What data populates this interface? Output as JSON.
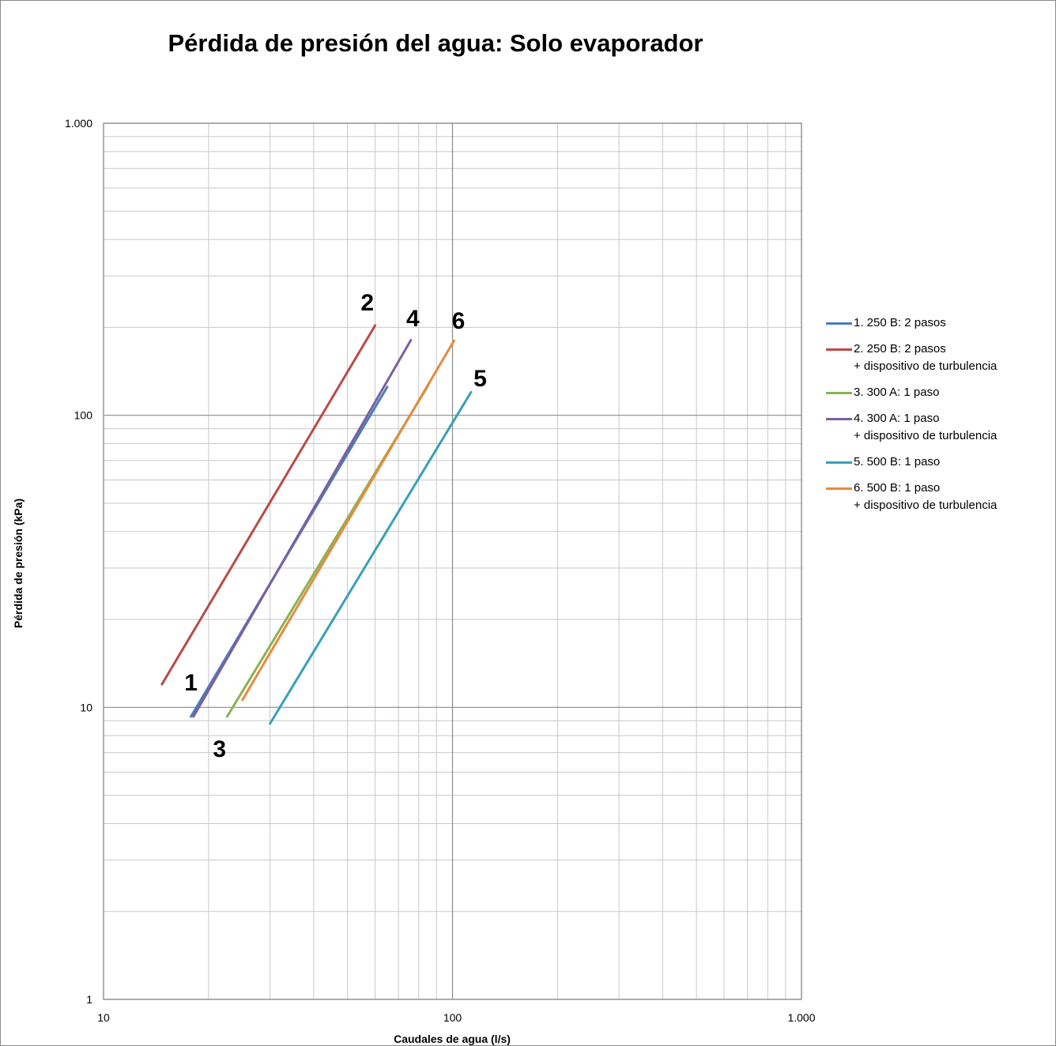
{
  "chart_data": {
    "type": "line",
    "title": "Pérdida de presión del agua: Solo evaporador",
    "xlabel": "Caudales de agua (l/s)",
    "ylabel": "Pérdida de presión (kPa)",
    "x_scale": "log",
    "y_scale": "log",
    "xlim": [
      10,
      1000
    ],
    "ylim": [
      1,
      1000
    ],
    "x_ticks": [
      10,
      100,
      1000
    ],
    "x_tick_labels": [
      "10",
      "100",
      "1.000"
    ],
    "y_ticks": [
      1,
      10,
      100,
      1000
    ],
    "y_tick_labels": [
      "1",
      "10",
      "100",
      "1.000"
    ],
    "grid": true,
    "legend_position": "right",
    "series": [
      {
        "name": "1. 250 B: 2 pasos",
        "legend": [
          "1. 250 B: 2 pasos"
        ],
        "label": "1",
        "color": "#4a7eba",
        "x": [
          17.8,
          65
        ],
        "y": [
          9.3,
          125
        ]
      },
      {
        "name": "2. 250 B: 2 pasos + dispositivo de turbulencia",
        "legend": [
          "2. 250 B: 2 pasos",
          "+ dispositivo de turbulencia"
        ],
        "label": "2",
        "color": "#bb4a48",
        "x": [
          14.7,
          60
        ],
        "y": [
          12,
          203
        ]
      },
      {
        "name": "3. 300 A: 1 paso",
        "legend": [
          "3. 300 A: 1 paso"
        ],
        "label": "3",
        "color": "#8bb24f",
        "x": [
          22.6,
          85
        ],
        "y": [
          9.3,
          126
        ]
      },
      {
        "name": "4. 300 A: 1 paso + dispositivo de turbulencia",
        "legend": [
          "4. 300 A: 1 paso",
          "+ dispositivo de turbulencia"
        ],
        "label": "4",
        "color": "#7a5fa2",
        "x": [
          18.1,
          76
        ],
        "y": [
          9.3,
          181
        ]
      },
      {
        "name": "5. 500 B: 1 paso",
        "legend": [
          "5. 500 B: 1 paso"
        ],
        "label": "5",
        "color": "#3aa0b5",
        "x": [
          30,
          113
        ],
        "y": [
          8.8,
          120
        ]
      },
      {
        "name": "6. 500 B: 1 paso + dispositivo de turbulencia",
        "legend": [
          "6. 500 B: 1 paso",
          "+ dispositivo de turbulencia"
        ],
        "label": "6",
        "color": "#e68a3e",
        "x": [
          25,
          101
        ],
        "y": [
          10.6,
          180
        ]
      }
    ],
    "annotations": [
      {
        "text": "1",
        "series": "1",
        "x": 17.8,
        "y": 12
      },
      {
        "text": "2",
        "series": "2",
        "x": 57,
        "y": 240
      },
      {
        "text": "3",
        "series": "3",
        "x": 21.5,
        "y": 7.1
      },
      {
        "text": "4",
        "series": "4",
        "x": 77,
        "y": 212
      },
      {
        "text": "5",
        "series": "5",
        "x": 120,
        "y": 132
      },
      {
        "text": "6",
        "series": "6",
        "x": 104,
        "y": 208
      }
    ]
  }
}
